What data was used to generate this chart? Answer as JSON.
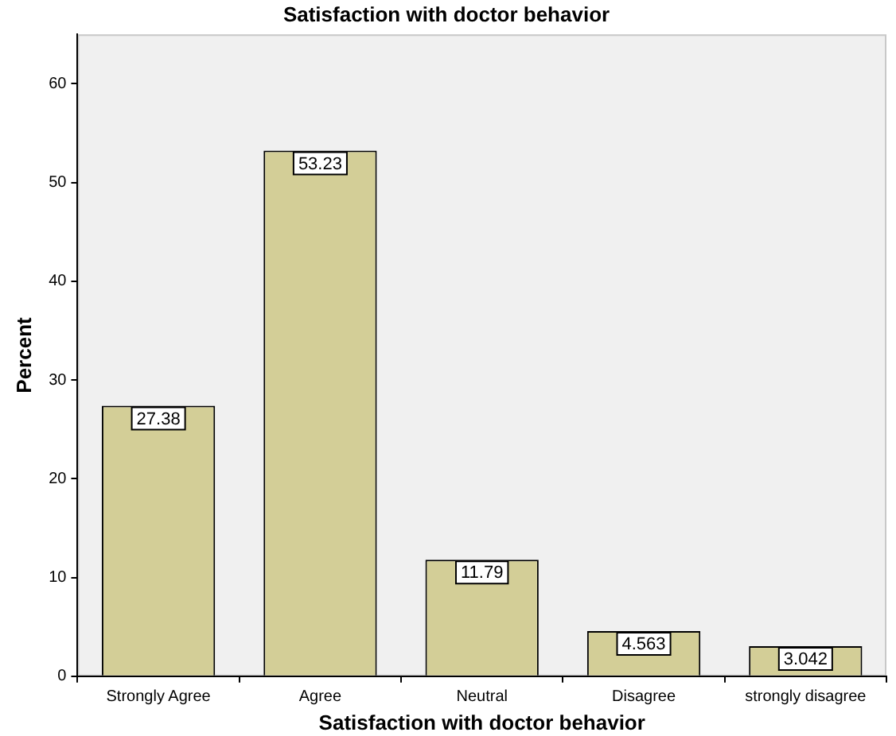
{
  "chart_data": {
    "type": "bar",
    "title": "Satisfaction with doctor behavior",
    "xlabel": "Satisfaction with doctor behavior",
    "ylabel": "Percent",
    "categories": [
      "Strongly Agree",
      "Agree",
      "Neutral",
      "Disagree",
      "strongly disagree"
    ],
    "values": [
      27.38,
      53.23,
      11.79,
      4.563,
      3.042
    ],
    "color": "#d3ce97",
    "ylim": [
      0,
      65
    ],
    "yticks": [
      0,
      10,
      20,
      30,
      40,
      50,
      60
    ],
    "data_labels": true,
    "grid": false,
    "legend": false
  }
}
